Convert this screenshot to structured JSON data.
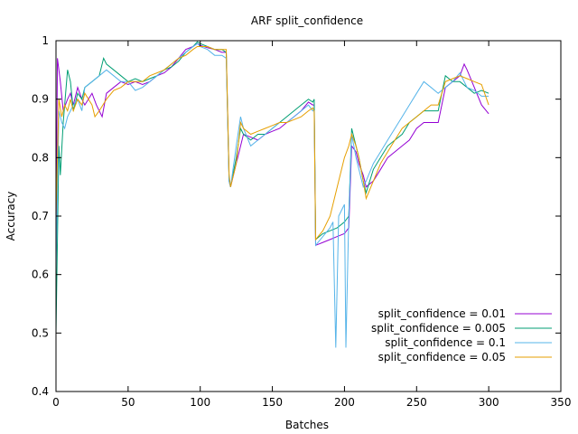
{
  "chart_data": {
    "type": "line",
    "title": "ARF split_confidence",
    "xlabel": "Batches",
    "ylabel": "Accuracy",
    "xlim": [
      0,
      350
    ],
    "ylim": [
      0.4,
      1.0
    ],
    "xticks": [
      0,
      50,
      100,
      150,
      200,
      250,
      300,
      350
    ],
    "yticks": [
      0.4,
      0.5,
      0.6,
      0.7,
      0.8,
      0.9,
      1.0
    ],
    "xtick_labels": [
      "0",
      "50",
      "100",
      "150",
      "200",
      "250",
      "300",
      "350"
    ],
    "ytick_labels": [
      "0.4",
      "0.5",
      "0.6",
      "0.7",
      "0.8",
      "0.9",
      "1"
    ],
    "grid": false,
    "legend_position": "bottom-right",
    "series": [
      {
        "name": "split_confidence = 0.01",
        "color": "#9400d3",
        "points": [
          [
            0,
            0.65
          ],
          [
            1,
            0.97
          ],
          [
            3,
            0.93
          ],
          [
            5,
            0.88
          ],
          [
            8,
            0.9
          ],
          [
            10,
            0.91
          ],
          [
            12,
            0.89
          ],
          [
            15,
            0.92
          ],
          [
            18,
            0.9
          ],
          [
            20,
            0.89
          ],
          [
            25,
            0.91
          ],
          [
            28,
            0.89
          ],
          [
            30,
            0.88
          ],
          [
            32,
            0.87
          ],
          [
            35,
            0.91
          ],
          [
            40,
            0.92
          ],
          [
            45,
            0.93
          ],
          [
            50,
            0.925
          ],
          [
            55,
            0.93
          ],
          [
            60,
            0.925
          ],
          [
            65,
            0.93
          ],
          [
            70,
            0.94
          ],
          [
            75,
            0.945
          ],
          [
            80,
            0.955
          ],
          [
            85,
            0.97
          ],
          [
            90,
            0.985
          ],
          [
            95,
            0.99
          ],
          [
            98,
            0.995
          ],
          [
            100,
            0.992
          ],
          [
            105,
            0.988
          ],
          [
            110,
            0.985
          ],
          [
            115,
            0.98
          ],
          [
            118,
            0.98
          ],
          [
            120,
            0.76
          ],
          [
            121,
            0.75
          ],
          [
            125,
            0.79
          ],
          [
            130,
            0.84
          ],
          [
            135,
            0.835
          ],
          [
            140,
            0.83
          ],
          [
            145,
            0.84
          ],
          [
            150,
            0.845
          ],
          [
            155,
            0.85
          ],
          [
            160,
            0.86
          ],
          [
            165,
            0.87
          ],
          [
            170,
            0.88
          ],
          [
            175,
            0.895
          ],
          [
            178,
            0.89
          ],
          [
            179,
            0.89
          ],
          [
            180,
            0.65
          ],
          [
            185,
            0.655
          ],
          [
            190,
            0.66
          ],
          [
            195,
            0.665
          ],
          [
            200,
            0.67
          ],
          [
            203,
            0.68
          ],
          [
            205,
            0.82
          ],
          [
            208,
            0.81
          ],
          [
            210,
            0.79
          ],
          [
            213,
            0.77
          ],
          [
            215,
            0.75
          ],
          [
            220,
            0.76
          ],
          [
            225,
            0.78
          ],
          [
            230,
            0.8
          ],
          [
            235,
            0.81
          ],
          [
            240,
            0.82
          ],
          [
            245,
            0.83
          ],
          [
            250,
            0.85
          ],
          [
            255,
            0.86
          ],
          [
            260,
            0.86
          ],
          [
            265,
            0.86
          ],
          [
            270,
            0.92
          ],
          [
            275,
            0.93
          ],
          [
            280,
            0.94
          ],
          [
            283,
            0.96
          ],
          [
            285,
            0.95
          ],
          [
            290,
            0.92
          ],
          [
            295,
            0.89
          ],
          [
            300,
            0.875
          ]
        ]
      },
      {
        "name": "split_confidence = 0.005",
        "color": "#009e73",
        "points": [
          [
            0,
            0.5
          ],
          [
            2,
            0.82
          ],
          [
            3,
            0.77
          ],
          [
            5,
            0.86
          ],
          [
            8,
            0.95
          ],
          [
            10,
            0.93
          ],
          [
            12,
            0.88
          ],
          [
            15,
            0.91
          ],
          [
            18,
            0.9
          ],
          [
            20,
            0.92
          ],
          [
            25,
            0.93
          ],
          [
            30,
            0.94
          ],
          [
            33,
            0.97
          ],
          [
            35,
            0.96
          ],
          [
            40,
            0.95
          ],
          [
            45,
            0.94
          ],
          [
            50,
            0.93
          ],
          [
            55,
            0.935
          ],
          [
            60,
            0.93
          ],
          [
            65,
            0.935
          ],
          [
            70,
            0.94
          ],
          [
            75,
            0.95
          ],
          [
            80,
            0.955
          ],
          [
            85,
            0.965
          ],
          [
            90,
            0.98
          ],
          [
            95,
            0.99
          ],
          [
            98,
            0.998
          ],
          [
            100,
            0.995
          ],
          [
            105,
            0.99
          ],
          [
            110,
            0.985
          ],
          [
            115,
            0.985
          ],
          [
            118,
            0.98
          ],
          [
            120,
            0.76
          ],
          [
            121,
            0.75
          ],
          [
            125,
            0.8
          ],
          [
            128,
            0.85
          ],
          [
            130,
            0.84
          ],
          [
            135,
            0.83
          ],
          [
            140,
            0.84
          ],
          [
            145,
            0.84
          ],
          [
            150,
            0.85
          ],
          [
            155,
            0.86
          ],
          [
            160,
            0.87
          ],
          [
            165,
            0.88
          ],
          [
            170,
            0.89
          ],
          [
            175,
            0.9
          ],
          [
            178,
            0.895
          ],
          [
            179,
            0.9
          ],
          [
            180,
            0.66
          ],
          [
            185,
            0.67
          ],
          [
            190,
            0.675
          ],
          [
            195,
            0.68
          ],
          [
            200,
            0.69
          ],
          [
            203,
            0.7
          ],
          [
            205,
            0.85
          ],
          [
            208,
            0.82
          ],
          [
            210,
            0.8
          ],
          [
            213,
            0.76
          ],
          [
            215,
            0.74
          ],
          [
            220,
            0.78
          ],
          [
            225,
            0.8
          ],
          [
            230,
            0.82
          ],
          [
            235,
            0.83
          ],
          [
            240,
            0.84
          ],
          [
            245,
            0.86
          ],
          [
            250,
            0.87
          ],
          [
            255,
            0.88
          ],
          [
            260,
            0.88
          ],
          [
            265,
            0.88
          ],
          [
            270,
            0.94
          ],
          [
            275,
            0.93
          ],
          [
            280,
            0.93
          ],
          [
            285,
            0.92
          ],
          [
            290,
            0.91
          ],
          [
            295,
            0.915
          ],
          [
            300,
            0.91
          ]
        ]
      },
      {
        "name": "split_confidence = 0.1",
        "color": "#56b4e9",
        "points": [
          [
            0,
            0.6
          ],
          [
            2,
            0.88
          ],
          [
            4,
            0.86
          ],
          [
            6,
            0.85
          ],
          [
            8,
            0.87
          ],
          [
            10,
            0.88
          ],
          [
            12,
            0.89
          ],
          [
            15,
            0.9
          ],
          [
            18,
            0.88
          ],
          [
            20,
            0.92
          ],
          [
            25,
            0.93
          ],
          [
            30,
            0.94
          ],
          [
            35,
            0.95
          ],
          [
            40,
            0.94
          ],
          [
            45,
            0.93
          ],
          [
            50,
            0.93
          ],
          [
            55,
            0.915
          ],
          [
            60,
            0.92
          ],
          [
            65,
            0.93
          ],
          [
            70,
            0.94
          ],
          [
            75,
            0.95
          ],
          [
            80,
            0.96
          ],
          [
            85,
            0.97
          ],
          [
            90,
            0.98
          ],
          [
            95,
            0.99
          ],
          [
            98,
            0.995
          ],
          [
            100,
            0.99
          ],
          [
            105,
            0.985
          ],
          [
            110,
            0.975
          ],
          [
            115,
            0.975
          ],
          [
            118,
            0.97
          ],
          [
            120,
            0.76
          ],
          [
            121,
            0.75
          ],
          [
            125,
            0.82
          ],
          [
            128,
            0.87
          ],
          [
            130,
            0.85
          ],
          [
            135,
            0.82
          ],
          [
            140,
            0.83
          ],
          [
            145,
            0.84
          ],
          [
            150,
            0.85
          ],
          [
            155,
            0.86
          ],
          [
            160,
            0.86
          ],
          [
            165,
            0.87
          ],
          [
            170,
            0.88
          ],
          [
            175,
            0.89
          ],
          [
            178,
            0.88
          ],
          [
            179,
            0.88
          ],
          [
            180,
            0.65
          ],
          [
            185,
            0.665
          ],
          [
            190,
            0.68
          ],
          [
            192,
            0.69
          ],
          [
            194,
            0.475
          ],
          [
            196,
            0.7
          ],
          [
            198,
            0.71
          ],
          [
            200,
            0.72
          ],
          [
            201,
            0.475
          ],
          [
            203,
            0.7
          ],
          [
            205,
            0.84
          ],
          [
            208,
            0.8
          ],
          [
            210,
            0.78
          ],
          [
            213,
            0.75
          ],
          [
            215,
            0.76
          ],
          [
            220,
            0.79
          ],
          [
            225,
            0.81
          ],
          [
            230,
            0.83
          ],
          [
            235,
            0.85
          ],
          [
            240,
            0.87
          ],
          [
            245,
            0.89
          ],
          [
            250,
            0.91
          ],
          [
            255,
            0.93
          ],
          [
            260,
            0.92
          ],
          [
            265,
            0.91
          ],
          [
            270,
            0.92
          ],
          [
            275,
            0.93
          ],
          [
            280,
            0.945
          ],
          [
            285,
            0.92
          ],
          [
            290,
            0.915
          ],
          [
            295,
            0.905
          ],
          [
            300,
            0.905
          ]
        ]
      },
      {
        "name": "split_confidence = 0.05",
        "color": "#e69f00",
        "points": [
          [
            0,
            0.7
          ],
          [
            2,
            0.9
          ],
          [
            4,
            0.87
          ],
          [
            6,
            0.89
          ],
          [
            8,
            0.88
          ],
          [
            10,
            0.9
          ],
          [
            12,
            0.88
          ],
          [
            15,
            0.9
          ],
          [
            18,
            0.89
          ],
          [
            20,
            0.91
          ],
          [
            25,
            0.89
          ],
          [
            27,
            0.87
          ],
          [
            30,
            0.88
          ],
          [
            35,
            0.9
          ],
          [
            40,
            0.915
          ],
          [
            45,
            0.92
          ],
          [
            50,
            0.93
          ],
          [
            55,
            0.93
          ],
          [
            60,
            0.93
          ],
          [
            65,
            0.94
          ],
          [
            70,
            0.945
          ],
          [
            75,
            0.95
          ],
          [
            80,
            0.96
          ],
          [
            85,
            0.97
          ],
          [
            90,
            0.975
          ],
          [
            95,
            0.985
          ],
          [
            98,
            0.99
          ],
          [
            100,
            0.99
          ],
          [
            105,
            0.99
          ],
          [
            110,
            0.985
          ],
          [
            115,
            0.985
          ],
          [
            118,
            0.985
          ],
          [
            120,
            0.77
          ],
          [
            121,
            0.75
          ],
          [
            125,
            0.79
          ],
          [
            128,
            0.86
          ],
          [
            130,
            0.85
          ],
          [
            135,
            0.84
          ],
          [
            140,
            0.845
          ],
          [
            145,
            0.85
          ],
          [
            150,
            0.855
          ],
          [
            155,
            0.86
          ],
          [
            160,
            0.86
          ],
          [
            165,
            0.865
          ],
          [
            170,
            0.87
          ],
          [
            175,
            0.88
          ],
          [
            178,
            0.885
          ],
          [
            179,
            0.88
          ],
          [
            180,
            0.66
          ],
          [
            185,
            0.675
          ],
          [
            190,
            0.7
          ],
          [
            195,
            0.75
          ],
          [
            198,
            0.78
          ],
          [
            200,
            0.8
          ],
          [
            203,
            0.82
          ],
          [
            205,
            0.84
          ],
          [
            208,
            0.82
          ],
          [
            210,
            0.8
          ],
          [
            213,
            0.76
          ],
          [
            215,
            0.73
          ],
          [
            220,
            0.76
          ],
          [
            225,
            0.79
          ],
          [
            230,
            0.81
          ],
          [
            235,
            0.83
          ],
          [
            240,
            0.85
          ],
          [
            245,
            0.86
          ],
          [
            250,
            0.87
          ],
          [
            255,
            0.88
          ],
          [
            260,
            0.89
          ],
          [
            265,
            0.89
          ],
          [
            270,
            0.93
          ],
          [
            275,
            0.935
          ],
          [
            280,
            0.94
          ],
          [
            285,
            0.935
          ],
          [
            290,
            0.93
          ],
          [
            295,
            0.925
          ],
          [
            300,
            0.89
          ]
        ]
      }
    ]
  }
}
